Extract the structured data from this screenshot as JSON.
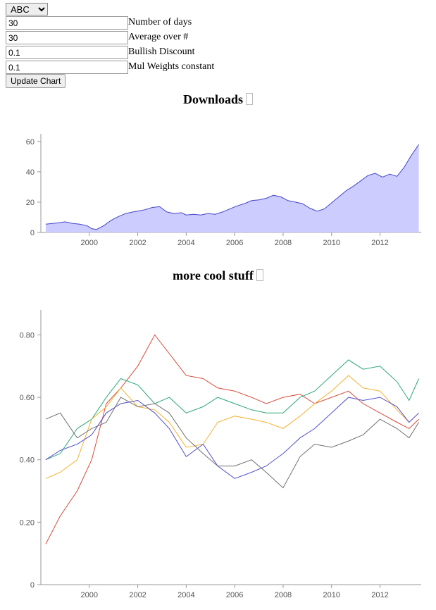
{
  "controls": {
    "dropdown": {
      "selected": "ABC"
    },
    "fields": [
      {
        "value": "30",
        "label": "Number of days"
      },
      {
        "value": "30",
        "label": "Average over #"
      },
      {
        "value": "0.1",
        "label": "Bullish Discount"
      },
      {
        "value": "0.1",
        "label": "Mul Weights constant"
      }
    ],
    "update_label": "Update Chart"
  },
  "colors": {
    "area_fill": "#ccccff",
    "area_stroke": "#4444cc",
    "axis": "#999999",
    "series": [
      "#d84b3a",
      "#2aa877",
      "#f5b12d",
      "#5050d0",
      "#707070"
    ]
  },
  "chart_data": [
    {
      "type": "area",
      "title": "Downloads",
      "xlim": [
        1998.0,
        2013.7
      ],
      "ylim": [
        0,
        65
      ],
      "xticks": [
        2000,
        2002,
        2004,
        2006,
        2008,
        2010,
        2012
      ],
      "yticks": [
        0,
        20,
        40,
        60
      ],
      "x": [
        1998.2,
        1998.5,
        1998.8,
        1999.0,
        1999.3,
        1999.6,
        1999.9,
        2000.1,
        2000.3,
        2000.6,
        2000.9,
        2001.2,
        2001.5,
        2001.8,
        2002.0,
        2002.3,
        2002.6,
        2002.9,
        2003.2,
        2003.5,
        2003.8,
        2004.0,
        2004.3,
        2004.6,
        2004.9,
        2005.2,
        2005.5,
        2005.8,
        2006.1,
        2006.4,
        2006.7,
        2007.0,
        2007.3,
        2007.6,
        2007.9,
        2008.2,
        2008.5,
        2008.8,
        2009.1,
        2009.4,
        2009.7,
        2010.0,
        2010.3,
        2010.6,
        2010.9,
        2011.2,
        2011.5,
        2011.8,
        2012.1,
        2012.4,
        2012.7,
        2013.0,
        2013.3,
        2013.6
      ],
      "values": [
        5.5,
        6,
        6.5,
        7,
        6,
        5.5,
        4.5,
        2.5,
        2,
        4.5,
        8,
        10.5,
        12.5,
        13.5,
        14,
        15,
        16.5,
        17,
        13.5,
        12.5,
        13,
        11.5,
        12,
        11.5,
        12.5,
        12,
        13.5,
        15.5,
        17.5,
        19,
        21,
        21.5,
        22.5,
        24.5,
        23.5,
        21,
        20,
        19,
        16,
        14,
        15.5,
        19.5,
        23.5,
        27.5,
        30.5,
        34,
        37.5,
        39,
        36.5,
        38.5,
        37,
        43,
        51,
        58
      ]
    },
    {
      "type": "line",
      "title": "more cool stuff",
      "xlim": [
        1998.0,
        2013.7
      ],
      "ylim": [
        0,
        0.88
      ],
      "xticks": [
        2000,
        2002,
        2004,
        2006,
        2008,
        2010,
        2012
      ],
      "yticks": [
        0,
        0.2,
        0.4,
        0.6,
        0.8
      ],
      "ytick_labels": [
        "0",
        "0.20",
        "0.40",
        "0.60",
        "0.80"
      ],
      "x": [
        1998.2,
        1998.8,
        1999.5,
        2000.1,
        2000.7,
        2001.3,
        2002.0,
        2002.7,
        2003.3,
        2004.0,
        2004.7,
        2005.3,
        2006.0,
        2006.7,
        2007.3,
        2008.0,
        2008.7,
        2009.3,
        2010.0,
        2010.7,
        2011.3,
        2012.0,
        2012.7,
        2013.2,
        2013.6
      ],
      "series": [
        {
          "name": "series-red",
          "values": [
            0.13,
            0.22,
            0.3,
            0.4,
            0.58,
            0.63,
            0.7,
            0.8,
            0.74,
            0.67,
            0.66,
            0.63,
            0.62,
            0.6,
            0.58,
            0.6,
            0.61,
            0.58,
            0.6,
            0.62,
            0.58,
            0.55,
            0.52,
            0.5,
            0.53
          ]
        },
        {
          "name": "series-green",
          "values": [
            0.4,
            0.42,
            0.5,
            0.53,
            0.6,
            0.66,
            0.64,
            0.58,
            0.6,
            0.55,
            0.57,
            0.6,
            0.58,
            0.56,
            0.55,
            0.55,
            0.6,
            0.62,
            0.67,
            0.72,
            0.69,
            0.7,
            0.65,
            0.59,
            0.66
          ]
        },
        {
          "name": "series-yellow",
          "values": [
            0.34,
            0.36,
            0.4,
            0.53,
            0.57,
            0.63,
            0.57,
            0.56,
            0.52,
            0.44,
            0.45,
            0.52,
            0.54,
            0.53,
            0.52,
            0.5,
            0.54,
            0.58,
            0.62,
            0.67,
            0.63,
            0.62,
            0.56,
            0.52,
            0.55
          ]
        },
        {
          "name": "series-blue",
          "values": [
            0.4,
            0.43,
            0.45,
            0.48,
            0.55,
            0.58,
            0.59,
            0.55,
            0.5,
            0.41,
            0.45,
            0.38,
            0.34,
            0.36,
            0.38,
            0.42,
            0.47,
            0.5,
            0.55,
            0.6,
            0.59,
            0.6,
            0.57,
            0.52,
            0.55
          ]
        },
        {
          "name": "series-gray",
          "values": [
            0.53,
            0.55,
            0.47,
            0.5,
            0.52,
            0.6,
            0.57,
            0.58,
            0.55,
            0.47,
            0.42,
            0.38,
            0.38,
            0.4,
            0.36,
            0.31,
            0.41,
            0.45,
            0.44,
            0.46,
            0.48,
            0.53,
            0.5,
            0.47,
            0.52
          ]
        }
      ]
    }
  ]
}
